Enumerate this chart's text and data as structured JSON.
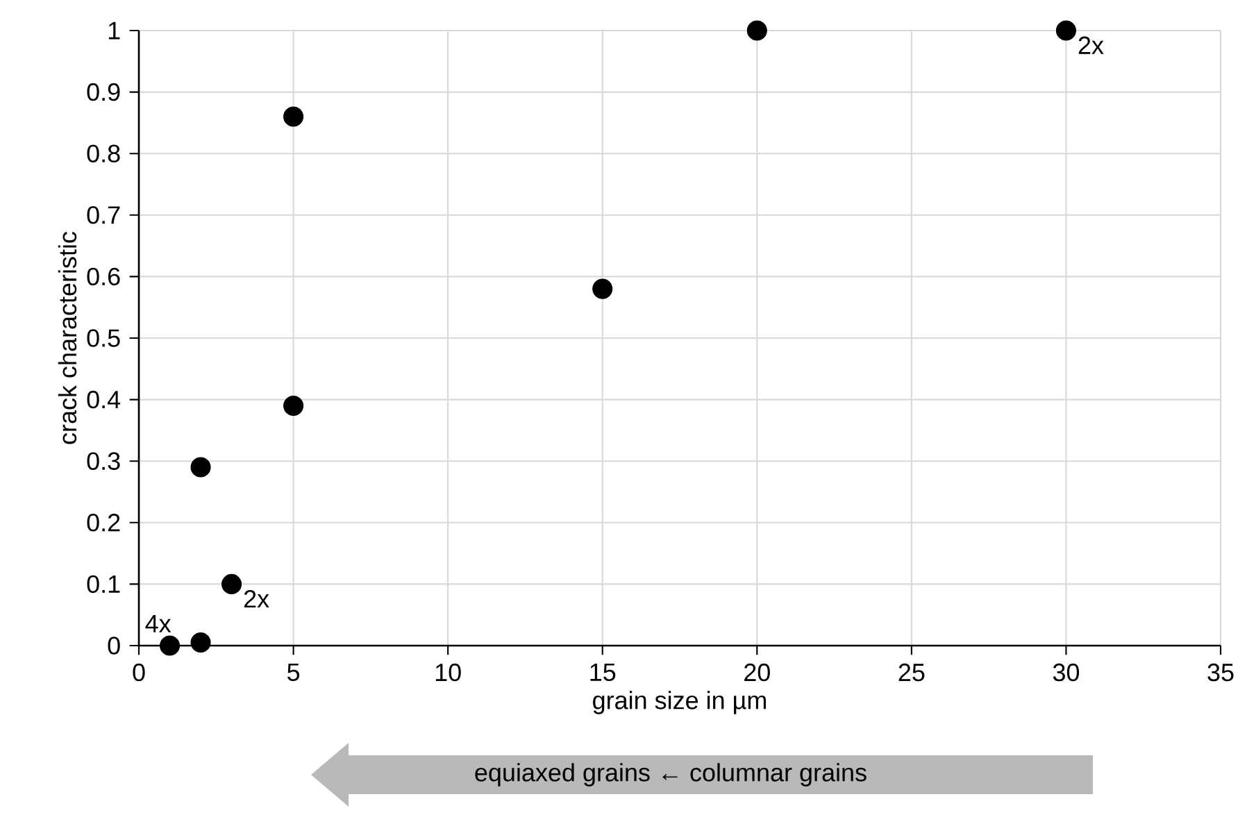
{
  "chart_data": {
    "type": "scatter",
    "xlabel": "grain size in µm",
    "ylabel": "crack characteristic",
    "x": [
      1,
      2,
      2,
      3,
      5,
      5,
      15,
      20,
      30
    ],
    "values": [
      0,
      0.005,
      0.29,
      0.1,
      0.39,
      0.86,
      0.58,
      1,
      1
    ],
    "color": "#000000",
    "marker": "circle",
    "xlim": [
      0,
      35
    ],
    "xticks": [
      0,
      5,
      10,
      15,
      20,
      25,
      30,
      35
    ],
    "ylim": [
      0,
      1
    ],
    "yticks": [
      0,
      0.1,
      0.2,
      0.3,
      0.4,
      0.5,
      0.6,
      0.7,
      0.8,
      0.9,
      1
    ],
    "grid": true,
    "annotations": [
      {
        "text": "4x",
        "x": 1,
        "y": 0
      },
      {
        "text": "2x",
        "x": 3,
        "y": 0.1
      },
      {
        "text": "2x",
        "x": 30,
        "y": 1
      },
      "equiaxed grains ← columnar grains"
    ]
  }
}
